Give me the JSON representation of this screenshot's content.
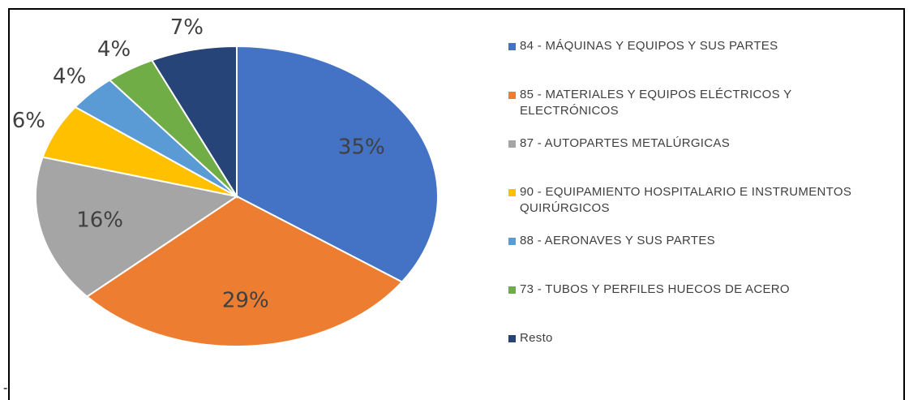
{
  "chart_data": {
    "type": "pie",
    "categories": [
      "84 - MÁQUINAS Y EQUIPOS Y SUS PARTES",
      "85 - MATERIALES Y EQUIPOS ELÉCTRICOS Y ELECTRÓNICOS",
      "87 - AUTOPARTES METALÚRGICAS",
      "90 - EQUIPAMIENTO HOSPITALARIO E INSTRUMENTOS QUIRÚRGICOS",
      "88 - AERONAVES Y SUS PARTES",
      "73 - TUBOS Y PERFILES HUECOS DE ACERO",
      "Resto"
    ],
    "values": [
      35,
      29,
      16,
      6,
      4,
      4,
      7
    ],
    "value_labels": [
      "35%",
      "29%",
      "16%",
      "6%",
      "4%",
      "4%",
      "7%"
    ],
    "colors": [
      "#4472c4",
      "#ed7d31",
      "#a5a5a5",
      "#ffc000",
      "#5b9bd5",
      "#70ad47",
      "#264478"
    ],
    "legend": "right"
  },
  "footnote": "-"
}
